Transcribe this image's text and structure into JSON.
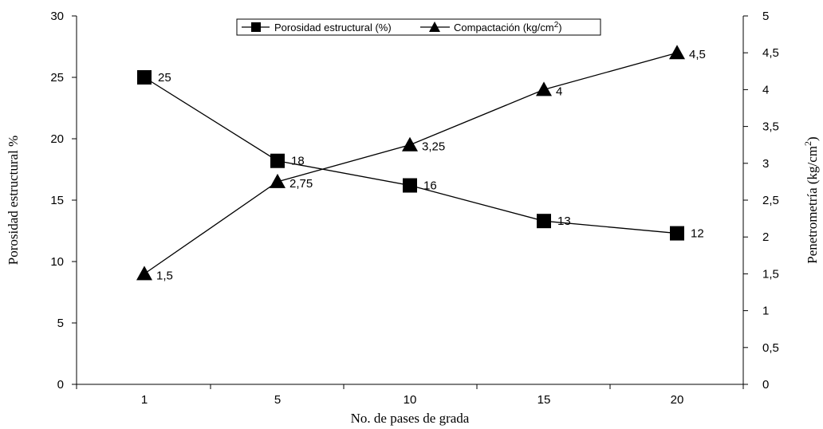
{
  "chart_data": {
    "type": "line",
    "x_label": "No. de pases de grada",
    "y_left_label": "Porosidad estructural %",
    "y_right_label_base": "Penetrometría (kg/cm",
    "y_right_label_sup": "2",
    "y_right_label_end": ")",
    "categories": [
      "1",
      "5",
      "10",
      "15",
      "20"
    ],
    "y_left_range": [
      0,
      30
    ],
    "y_left_ticks": [
      "0",
      "5",
      "10",
      "15",
      "20",
      "25",
      "30"
    ],
    "y_right_range": [
      0,
      5
    ],
    "y_right_ticks": [
      "0",
      "0,5",
      "1",
      "1,5",
      "2",
      "2,5",
      "3",
      "3,5",
      "4",
      "4,5",
      "5"
    ],
    "legend_position": "top-center",
    "series": [
      {
        "name": "Porosidad estructural (%)",
        "axis": "left",
        "marker": "square",
        "values": [
          25,
          18.2,
          16.2,
          13.3,
          12.3
        ],
        "labels": [
          "25",
          "18",
          "16",
          "13",
          "12"
        ]
      },
      {
        "name_base": "Compactación (kg/cm",
        "name_sup": "2",
        "name_end": ")",
        "axis": "right",
        "marker": "triangle",
        "values": [
          1.5,
          2.75,
          3.25,
          4,
          4.5
        ],
        "labels": [
          "1,5",
          "2,75",
          "3,25",
          "4",
          "4,5"
        ]
      }
    ]
  }
}
